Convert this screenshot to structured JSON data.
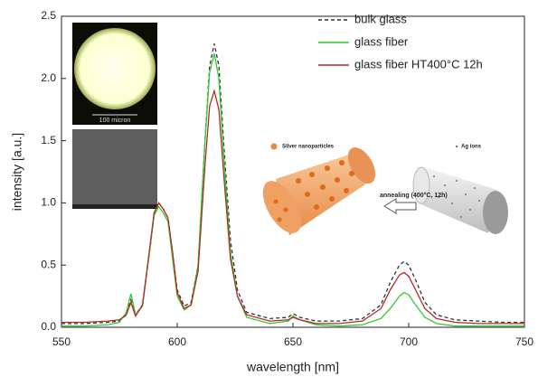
{
  "chart_data": {
    "type": "line",
    "xlabel": "wavelength [nm]",
    "ylabel": "intensity [a.u.]",
    "x": [
      550,
      560,
      570,
      575,
      578,
      580,
      582,
      585,
      588,
      590,
      592,
      594,
      596,
      598,
      600,
      603,
      606,
      609,
      612,
      614,
      616,
      618,
      620,
      623,
      626,
      630,
      640,
      648,
      650,
      653,
      660,
      670,
      680,
      688,
      692,
      696,
      698,
      700,
      703,
      707,
      712,
      720,
      730,
      740,
      750
    ],
    "series": [
      {
        "name": "bulk glass",
        "color": "#333333",
        "dashed": true,
        "values": [
          0.03,
          0.03,
          0.04,
          0.05,
          0.1,
          0.22,
          0.1,
          0.18,
          0.6,
          0.9,
          1.0,
          0.95,
          0.88,
          0.6,
          0.3,
          0.17,
          0.2,
          0.5,
          1.5,
          2.1,
          2.28,
          2.1,
          1.5,
          0.7,
          0.3,
          0.12,
          0.07,
          0.08,
          0.11,
          0.08,
          0.05,
          0.05,
          0.07,
          0.18,
          0.36,
          0.5,
          0.53,
          0.5,
          0.38,
          0.2,
          0.1,
          0.06,
          0.05,
          0.04,
          0.04
        ]
      },
      {
        "name": "glass fiber",
        "color": "#2ecc2e",
        "dashed": false,
        "values": [
          0.01,
          0.01,
          0.02,
          0.04,
          0.12,
          0.27,
          0.1,
          0.17,
          0.6,
          0.9,
          0.97,
          0.92,
          0.85,
          0.55,
          0.25,
          0.14,
          0.18,
          0.5,
          1.5,
          2.05,
          2.2,
          2.0,
          1.4,
          0.6,
          0.25,
          0.08,
          0.03,
          0.05,
          0.09,
          0.06,
          0.02,
          0.01,
          0.02,
          0.07,
          0.15,
          0.25,
          0.28,
          0.26,
          0.18,
          0.08,
          0.03,
          0.01,
          0.01,
          0.01,
          0.01
        ]
      },
      {
        "name": "glass fiber HT400°C 12h",
        "color": "#b52a2a",
        "dashed": false,
        "values": [
          0.04,
          0.04,
          0.05,
          0.06,
          0.1,
          0.2,
          0.09,
          0.18,
          0.62,
          0.92,
          1.0,
          0.95,
          0.88,
          0.6,
          0.28,
          0.15,
          0.18,
          0.45,
          1.3,
          1.78,
          1.9,
          1.75,
          1.25,
          0.55,
          0.25,
          0.1,
          0.05,
          0.06,
          0.08,
          0.06,
          0.03,
          0.03,
          0.05,
          0.15,
          0.3,
          0.42,
          0.44,
          0.41,
          0.3,
          0.15,
          0.07,
          0.04,
          0.03,
          0.03,
          0.03
        ]
      }
    ],
    "xlim": [
      550,
      750
    ],
    "xticks": [
      550,
      600,
      650,
      700,
      750
    ],
    "ylim": [
      0,
      2.5
    ],
    "yticks": [
      {
        "value": 0,
        "label": "0.0"
      },
      {
        "value": 0.5,
        "label": "0.5"
      },
      {
        "value": 1,
        "label": "1.0"
      },
      {
        "value": 1.5,
        "label": "1.5"
      },
      {
        "value": 2,
        "label": "2.0"
      },
      {
        "value": 2.5,
        "label": "2.5"
      }
    ],
    "annotations": [
      "100 micron",
      "Silver nanoparticles",
      "Ag ions",
      "annealing (400°C, 12h)"
    ]
  }
}
